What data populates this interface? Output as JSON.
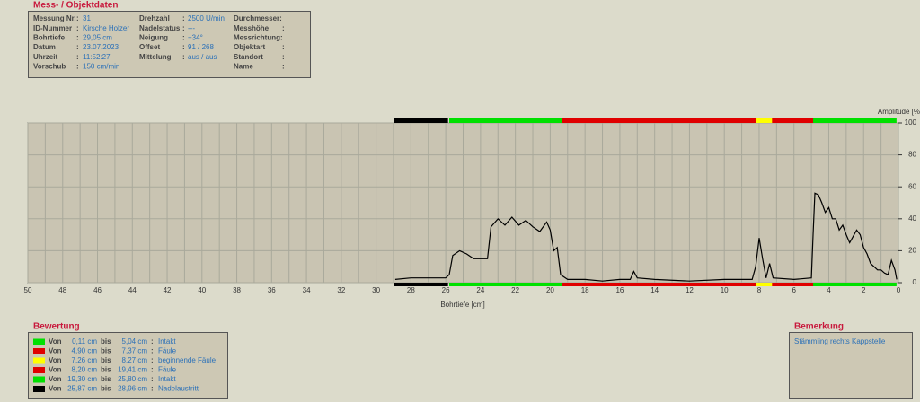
{
  "header": {
    "title": "Mess- / Objektdaten",
    "columns": [
      [
        {
          "label": "Messung Nr.",
          "sep": true,
          "value": "31"
        },
        {
          "label": "ID-Nummer",
          "sep": true,
          "value": "Kirsche Holzer"
        },
        {
          "label": "Bohrtiefe",
          "sep": true,
          "value": "29,05 cm"
        },
        {
          "label": "Datum",
          "sep": true,
          "value": "23.07.2023"
        },
        {
          "label": "Uhrzeit",
          "sep": true,
          "value": "11:52:27"
        },
        {
          "label": "Vorschub",
          "sep": true,
          "value": "150 cm/min"
        }
      ],
      [
        {
          "label": "Drehzahl",
          "sep": true,
          "value": "2500 U/min"
        },
        {
          "label": "Nadelstatus",
          "sep": true,
          "value": "---"
        },
        {
          "label": "Neigung",
          "sep": true,
          "value": "+34°"
        },
        {
          "label": "Offset",
          "sep": true,
          "value": "91 / 268"
        },
        {
          "label": "Mittelung",
          "sep": true,
          "value": "aus / aus"
        }
      ],
      [
        {
          "label": "Durchmesser:",
          "sep": false
        },
        {
          "label": "Messhöhe",
          "sep": true
        },
        {
          "label": "Messrichtung:",
          "sep": false
        },
        {
          "label": "Objektart",
          "sep": true
        },
        {
          "label": "Standort",
          "sep": true
        },
        {
          "label": "Name",
          "sep": true
        }
      ]
    ],
    "separator": ":"
  },
  "chart_data": {
    "type": "line",
    "x_label": "Bohrtiefe [cm]",
    "y_label": "Amplitude [%",
    "xlim": [
      50,
      0
    ],
    "ylim": [
      0,
      100
    ],
    "xticks": [
      50,
      48,
      46,
      44,
      42,
      40,
      38,
      36,
      34,
      32,
      30,
      28,
      26,
      24,
      22,
      20,
      18,
      16,
      14,
      12,
      10,
      8,
      6,
      4,
      2,
      0
    ],
    "xminorticks": [
      49,
      47,
      45,
      43,
      41,
      39,
      37,
      35,
      33,
      31,
      29,
      27,
      25,
      23,
      21,
      19,
      17,
      15,
      13,
      11,
      9,
      7,
      5,
      3,
      1
    ],
    "yticks": [
      0,
      20,
      40,
      60,
      80,
      100
    ],
    "grid": true,
    "x": [
      28.9,
      28,
      27,
      26,
      25.8,
      25.6,
      25.2,
      24.8,
      24.4,
      23.6,
      23.4,
      23,
      22.6,
      22.2,
      21.8,
      21.4,
      21,
      20.6,
      20.2,
      20,
      19.8,
      19.6,
      19.4,
      19,
      18,
      17,
      16,
      15.4,
      15.2,
      15,
      14,
      12,
      10,
      9,
      8.4,
      8.2,
      8,
      7.8,
      7.6,
      7.4,
      7.2,
      6,
      5,
      4.9,
      4.8,
      4.6,
      4.4,
      4.2,
      4,
      3.8,
      3.6,
      3.4,
      3.2,
      3,
      2.8,
      2.6,
      2.4,
      2.2,
      2,
      1.8,
      1.6,
      1.4,
      1.2,
      1,
      0.8,
      0.6,
      0.4,
      0.2,
      0.1
    ],
    "series": [
      {
        "color": "#000000",
        "values": [
          2,
          3,
          3,
          3,
          5,
          17,
          20,
          18,
          15,
          15,
          35,
          40,
          36,
          41,
          36,
          39,
          35,
          32,
          38,
          33,
          20,
          22,
          5,
          2,
          2,
          1,
          2,
          2,
          7,
          3,
          2,
          1,
          2,
          2,
          2,
          10,
          28,
          15,
          3,
          12,
          3,
          2,
          3,
          30,
          56,
          55,
          50,
          44,
          47,
          40,
          40,
          33,
          36,
          30,
          25,
          29,
          33,
          30,
          22,
          18,
          12,
          10,
          8,
          8,
          6,
          5,
          14,
          8,
          2
        ]
      }
    ]
  },
  "bewertung": {
    "title": "Bewertung",
    "words": {
      "from": "Von",
      "to": "bis",
      "sep": ":"
    },
    "rows": [
      {
        "color": "#00e000",
        "from": 0.11,
        "from_label": "0,11 cm",
        "to": 5.04,
        "to_label": "5,04 cm",
        "label": "Intakt"
      },
      {
        "color": "#e00000",
        "from": 4.9,
        "from_label": "4,90 cm",
        "to": 7.37,
        "to_label": "7,37 cm",
        "label": "Fäule"
      },
      {
        "color": "#ffff00",
        "from": 7.26,
        "from_label": "7,26 cm",
        "to": 8.27,
        "to_label": "8,27 cm",
        "label": "beginnende Fäule"
      },
      {
        "color": "#e00000",
        "from": 8.2,
        "from_label": "8,20 cm",
        "to": 19.41,
        "to_label": "19,41 cm",
        "label": "Fäule"
      },
      {
        "color": "#00e000",
        "from": 19.3,
        "from_label": "19,30 cm",
        "to": 25.8,
        "to_label": "25,80 cm",
        "label": "Intakt"
      },
      {
        "color": "#000000",
        "from": 25.87,
        "from_label": "25,87 cm",
        "to": 28.96,
        "to_label": "28,96 cm",
        "label": "Nadelaustritt"
      }
    ]
  },
  "bemerkung": {
    "title": "Bemerkung",
    "text": "Stämmling rechts Kappstelle"
  }
}
